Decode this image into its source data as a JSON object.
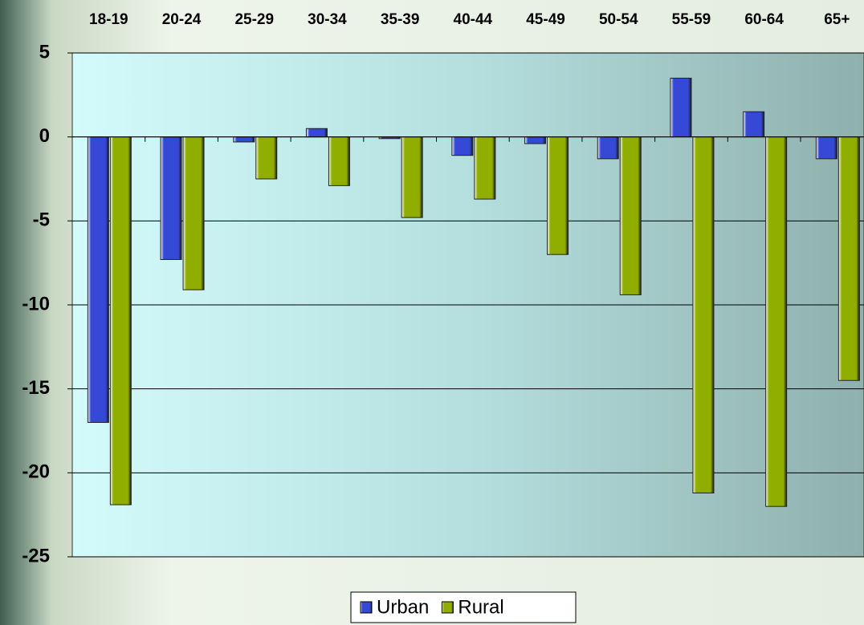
{
  "chart_data": {
    "type": "bar",
    "categories": [
      "18-19",
      "20-24",
      "25-29",
      "30-34",
      "35-39",
      "40-44",
      "45-49",
      "50-54",
      "55-59",
      "60-64",
      "65+"
    ],
    "series": [
      {
        "name": "Urban",
        "color": "#3548d6",
        "values": [
          -17,
          -7.3,
          -0.3,
          0.5,
          -0.1,
          -1.1,
          -0.4,
          -1.3,
          3.5,
          1.5,
          -1.3
        ]
      },
      {
        "name": "Rural",
        "color": "#8fae00",
        "values": [
          -21.9,
          -9.1,
          -2.5,
          -2.9,
          -4.8,
          -3.7,
          -7,
          -9.4,
          -21.2,
          -22,
          -14.5
        ]
      }
    ],
    "ylim": [
      -25,
      5
    ],
    "yticks": [
      -25,
      -20,
      -15,
      -10,
      -5,
      0,
      5
    ],
    "grid": true,
    "legend": "bottom"
  }
}
